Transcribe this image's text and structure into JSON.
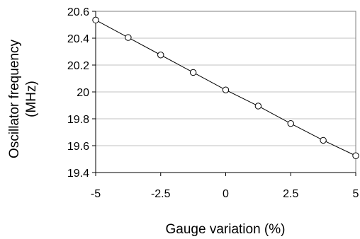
{
  "chart_data": {
    "type": "scatter",
    "xlabel": "Gauge variation (%)",
    "ylabel_lines": [
      "Oscillator frequency",
      "(MHz)"
    ],
    "xlim": [
      -5,
      5
    ],
    "ylim": [
      19.4,
      20.6
    ],
    "xticks": [
      "-5",
      "-2.5",
      "0",
      "2.5",
      "5"
    ],
    "yticks": [
      "19.4",
      "19.6",
      "19.8",
      "20",
      "20.2",
      "20.4",
      "20.6"
    ],
    "grid": "horizontal",
    "colors": {
      "line": "#000000",
      "marker": "#000000",
      "grid": "#c0c0c0"
    },
    "series": [
      {
        "x": [
          -5,
          -3.75,
          -2.5,
          -1.25,
          0,
          1.25,
          2.5,
          3.75,
          5
        ],
        "y": [
          20.535,
          20.405,
          20.275,
          20.145,
          20.015,
          19.895,
          19.765,
          19.64,
          19.525
        ],
        "markers": "open-circle",
        "trendline": true
      }
    ]
  }
}
